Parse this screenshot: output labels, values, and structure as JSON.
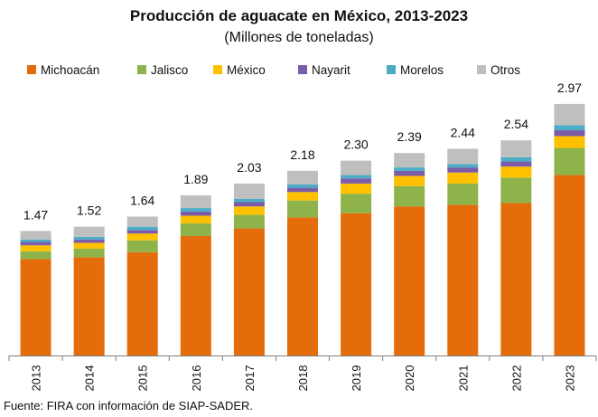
{
  "chart_data": {
    "type": "bar",
    "stacked": true,
    "title": "Producción de aguacate en México, 2013-2023",
    "subtitle": "(Millones de toneladas)",
    "categories": [
      "2013",
      "2014",
      "2015",
      "2016",
      "2017",
      "2018",
      "2019",
      "2020",
      "2021",
      "2022",
      "2023"
    ],
    "totals": [
      1.47,
      1.52,
      1.64,
      1.89,
      2.03,
      2.18,
      2.3,
      2.39,
      2.44,
      2.54,
      2.97
    ],
    "total_labels": [
      "1.47",
      "1.52",
      "1.64",
      "1.89",
      "2.03",
      "2.18",
      "2.30",
      "2.39",
      "2.44",
      "2.54",
      "2.97"
    ],
    "series": [
      {
        "name": "Michoacán",
        "color": "#E46C0A",
        "values": [
          1.14,
          1.16,
          1.22,
          1.41,
          1.5,
          1.63,
          1.68,
          1.76,
          1.78,
          1.8,
          2.13
        ]
      },
      {
        "name": "Jalisco",
        "color": "#8DB34A",
        "values": [
          0.09,
          0.1,
          0.14,
          0.15,
          0.16,
          0.2,
          0.23,
          0.24,
          0.25,
          0.3,
          0.32
        ]
      },
      {
        "name": "México",
        "color": "#FFC000",
        "values": [
          0.07,
          0.07,
          0.08,
          0.09,
          0.1,
          0.1,
          0.12,
          0.12,
          0.13,
          0.13,
          0.14
        ]
      },
      {
        "name": "Nayarit",
        "color": "#7B5CA8",
        "values": [
          0.04,
          0.04,
          0.04,
          0.05,
          0.05,
          0.05,
          0.06,
          0.06,
          0.06,
          0.06,
          0.07
        ]
      },
      {
        "name": "Morelos",
        "color": "#4BACC6",
        "values": [
          0.03,
          0.03,
          0.04,
          0.04,
          0.04,
          0.04,
          0.04,
          0.04,
          0.04,
          0.05,
          0.06
        ]
      },
      {
        "name": "Otros",
        "color": "#BFBFBF",
        "values": [
          0.1,
          0.12,
          0.12,
          0.15,
          0.18,
          0.16,
          0.17,
          0.17,
          0.18,
          0.2,
          0.25
        ]
      }
    ],
    "legend_position": "top",
    "grid": false,
    "ylim": [
      0,
      3.3
    ],
    "xlabel": "",
    "ylabel": ""
  },
  "source": "Fuente: FIRA con información de SIAP-SADER."
}
